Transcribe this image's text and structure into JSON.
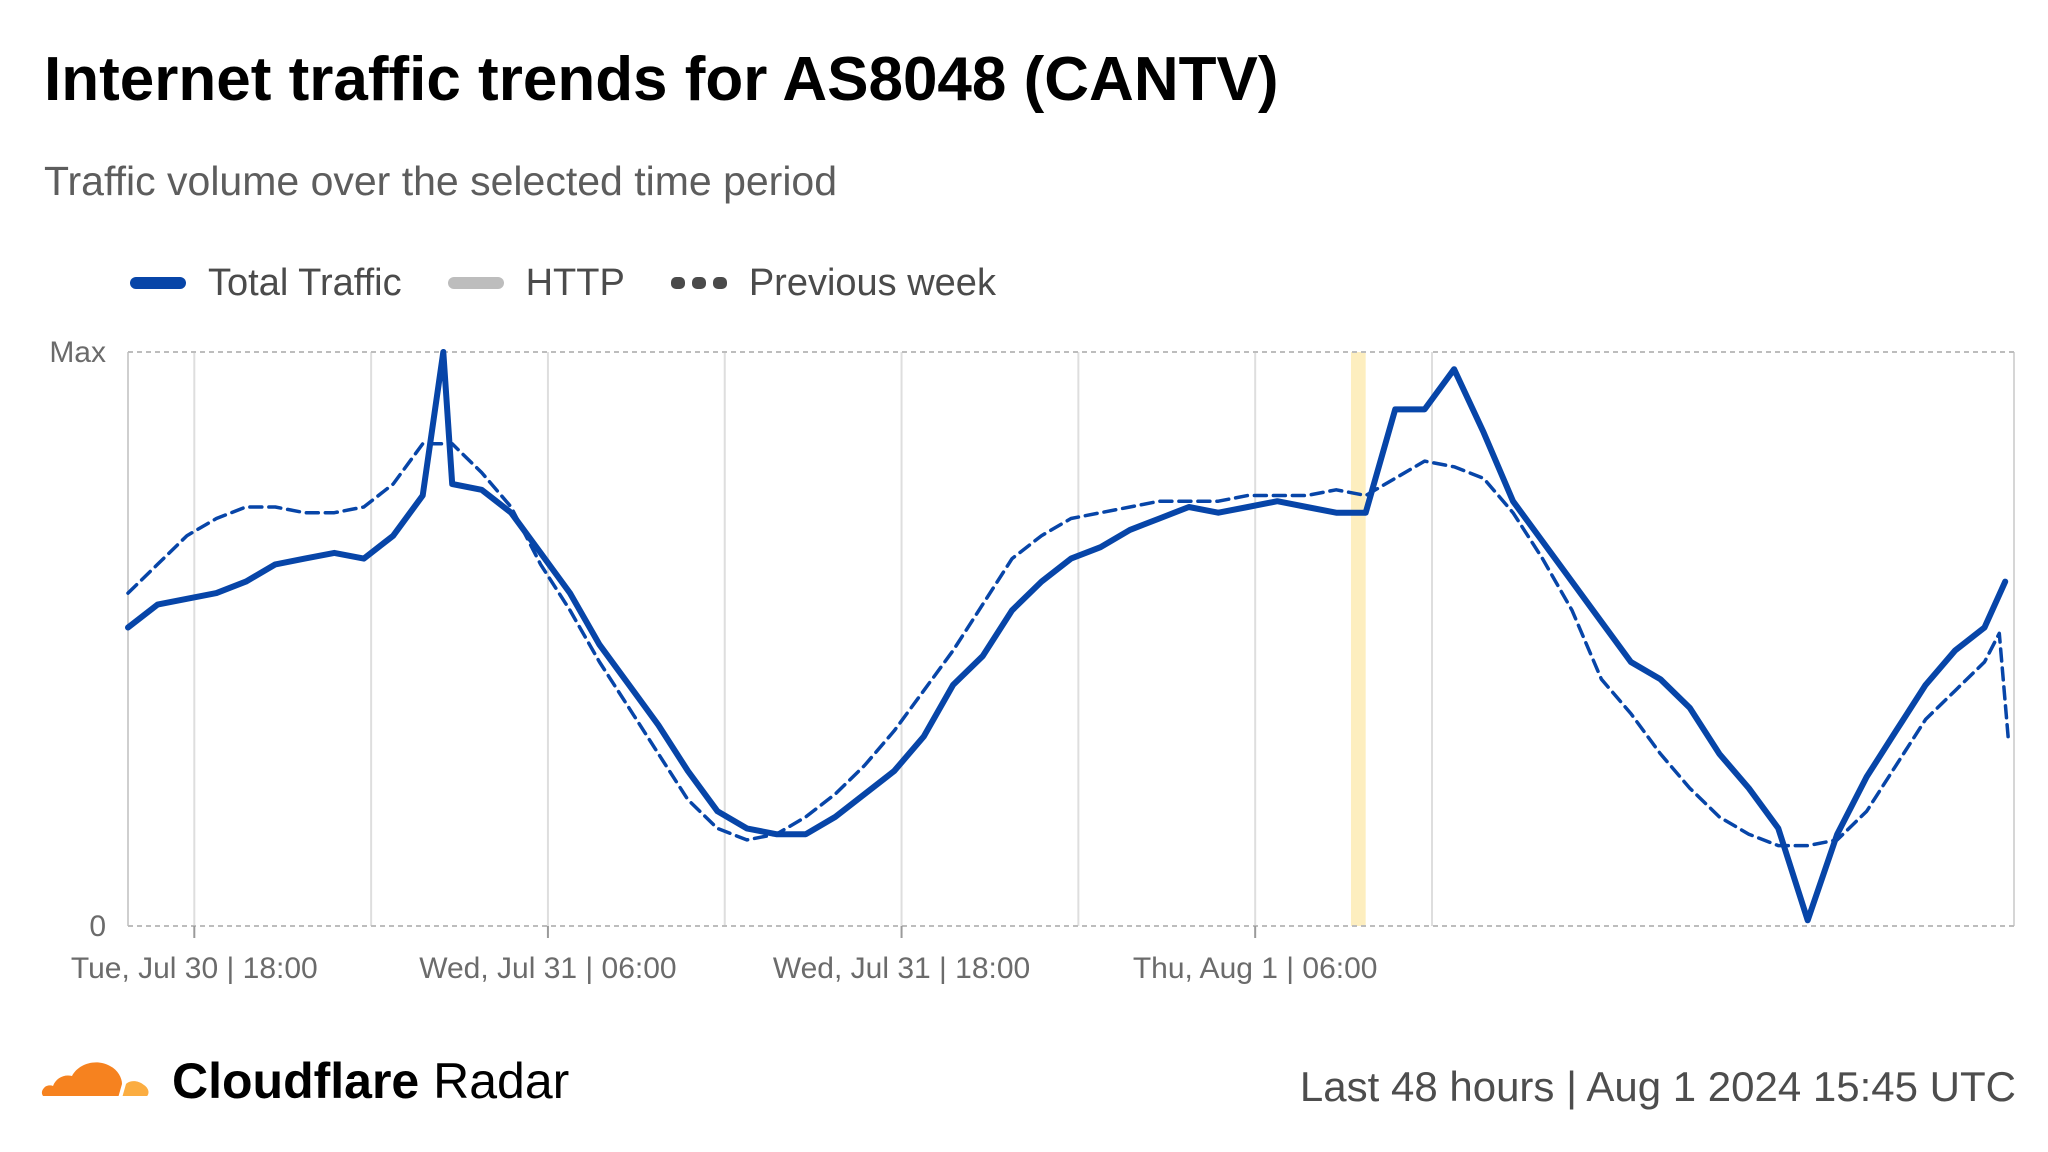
{
  "header": {
    "title": "Internet traffic trends for AS8048 (CANTV)",
    "subtitle": "Traffic volume over the selected time period"
  },
  "legend": [
    {
      "label": "Total Traffic",
      "style": "solid",
      "color": "#0745a8"
    },
    {
      "label": "HTTP",
      "style": "solid",
      "color": "#bdbdbd"
    },
    {
      "label": "Previous week",
      "style": "dashed",
      "color": "#4a4a4a"
    }
  ],
  "footer": {
    "brand_bold": "Cloudflare",
    "brand_regular": " Radar",
    "range_label": "Last 48 hours",
    "separator": "|",
    "timestamp": "Aug 1 2024 15:45 UTC"
  },
  "chart_data": {
    "type": "line",
    "x_unit": "hours since start (Tue, Jul 30 | 15:45 UTC)",
    "ylim": [
      0,
      1
    ],
    "y_tick_labels": [
      "0",
      "Max"
    ],
    "x_ticks": [
      {
        "x": 2.25,
        "label": "Tue, Jul 30 | 18:00"
      },
      {
        "x": 14.25,
        "label": "Wed, Jul 31 | 06:00"
      },
      {
        "x": 26.25,
        "label": "Wed, Jul 31 | 18:00"
      },
      {
        "x": 38.25,
        "label": "Thu, Aug 1 | 06:00"
      }
    ],
    "gridlines_x": [
      2.25,
      8.25,
      14.25,
      20.25,
      26.25,
      32.25,
      38.25,
      44.25
    ],
    "highlight": {
      "x_start": 41.5,
      "x_end": 42.0,
      "color": "#fdeebf"
    },
    "grid": true,
    "legend_position": "top-left",
    "series": [
      {
        "name": "Total Traffic",
        "color": "#0745a8",
        "style": "solid",
        "points": [
          [
            0,
            0.52
          ],
          [
            1,
            0.56
          ],
          [
            2,
            0.57
          ],
          [
            3,
            0.58
          ],
          [
            4,
            0.6
          ],
          [
            5,
            0.63
          ],
          [
            6,
            0.64
          ],
          [
            7,
            0.65
          ],
          [
            8,
            0.64
          ],
          [
            9,
            0.68
          ],
          [
            10,
            0.75
          ],
          [
            10.7,
            1.0
          ],
          [
            11,
            0.77
          ],
          [
            12,
            0.76
          ],
          [
            13,
            0.72
          ],
          [
            14,
            0.65
          ],
          [
            15,
            0.58
          ],
          [
            16,
            0.49
          ],
          [
            17,
            0.42
          ],
          [
            18,
            0.35
          ],
          [
            19,
            0.27
          ],
          [
            20,
            0.2
          ],
          [
            21,
            0.17
          ],
          [
            22,
            0.16
          ],
          [
            23,
            0.16
          ],
          [
            24,
            0.19
          ],
          [
            25,
            0.23
          ],
          [
            26,
            0.27
          ],
          [
            27,
            0.33
          ],
          [
            28,
            0.42
          ],
          [
            29,
            0.47
          ],
          [
            30,
            0.55
          ],
          [
            31,
            0.6
          ],
          [
            32,
            0.64
          ],
          [
            33,
            0.66
          ],
          [
            34,
            0.69
          ],
          [
            35,
            0.71
          ],
          [
            36,
            0.73
          ],
          [
            37,
            0.72
          ],
          [
            38,
            0.73
          ],
          [
            39,
            0.74
          ],
          [
            40,
            0.73
          ],
          [
            41,
            0.72
          ],
          [
            42,
            0.72
          ],
          [
            43,
            0.9
          ],
          [
            44,
            0.9
          ],
          [
            45,
            0.97
          ],
          [
            46,
            0.86
          ],
          [
            47,
            0.74
          ],
          [
            48,
            0.67
          ],
          [
            49,
            0.6
          ],
          [
            50,
            0.53
          ],
          [
            51,
            0.46
          ],
          [
            52,
            0.43
          ],
          [
            53,
            0.38
          ],
          [
            54,
            0.3
          ],
          [
            55,
            0.24
          ],
          [
            56,
            0.17
          ],
          [
            57,
            0.01
          ],
          [
            58,
            0.16
          ],
          [
            59,
            0.26
          ],
          [
            60,
            0.34
          ],
          [
            61,
            0.42
          ],
          [
            62,
            0.48
          ],
          [
            63,
            0.52
          ],
          [
            63.7,
            0.6
          ]
        ]
      },
      {
        "name": "Previous week",
        "color": "#0745a8",
        "style": "dashed",
        "points": [
          [
            0,
            0.58
          ],
          [
            1,
            0.63
          ],
          [
            2,
            0.68
          ],
          [
            3,
            0.71
          ],
          [
            4,
            0.73
          ],
          [
            5,
            0.73
          ],
          [
            6,
            0.72
          ],
          [
            7,
            0.72
          ],
          [
            8,
            0.73
          ],
          [
            9,
            0.77
          ],
          [
            10,
            0.84
          ],
          [
            11,
            0.84
          ],
          [
            12,
            0.79
          ],
          [
            13,
            0.73
          ],
          [
            14,
            0.63
          ],
          [
            15,
            0.55
          ],
          [
            16,
            0.46
          ],
          [
            17,
            0.38
          ],
          [
            18,
            0.3
          ],
          [
            19,
            0.22
          ],
          [
            20,
            0.17
          ],
          [
            21,
            0.15
          ],
          [
            22,
            0.16
          ],
          [
            23,
            0.19
          ],
          [
            24,
            0.23
          ],
          [
            25,
            0.28
          ],
          [
            26,
            0.34
          ],
          [
            27,
            0.41
          ],
          [
            28,
            0.48
          ],
          [
            29,
            0.56
          ],
          [
            30,
            0.64
          ],
          [
            31,
            0.68
          ],
          [
            32,
            0.71
          ],
          [
            33,
            0.72
          ],
          [
            34,
            0.73
          ],
          [
            35,
            0.74
          ],
          [
            36,
            0.74
          ],
          [
            37,
            0.74
          ],
          [
            38,
            0.75
          ],
          [
            39,
            0.75
          ],
          [
            40,
            0.75
          ],
          [
            41,
            0.76
          ],
          [
            42,
            0.75
          ],
          [
            43,
            0.78
          ],
          [
            44,
            0.81
          ],
          [
            45,
            0.8
          ],
          [
            46,
            0.78
          ],
          [
            47,
            0.72
          ],
          [
            48,
            0.64
          ],
          [
            49,
            0.55
          ],
          [
            50,
            0.43
          ],
          [
            51,
            0.37
          ],
          [
            52,
            0.3
          ],
          [
            53,
            0.24
          ],
          [
            54,
            0.19
          ],
          [
            55,
            0.16
          ],
          [
            56,
            0.14
          ],
          [
            57,
            0.14
          ],
          [
            58,
            0.15
          ],
          [
            59,
            0.2
          ],
          [
            60,
            0.28
          ],
          [
            61,
            0.36
          ],
          [
            62,
            0.41
          ],
          [
            63,
            0.46
          ],
          [
            63.5,
            0.51
          ],
          [
            63.8,
            0.33
          ]
        ]
      }
    ]
  }
}
